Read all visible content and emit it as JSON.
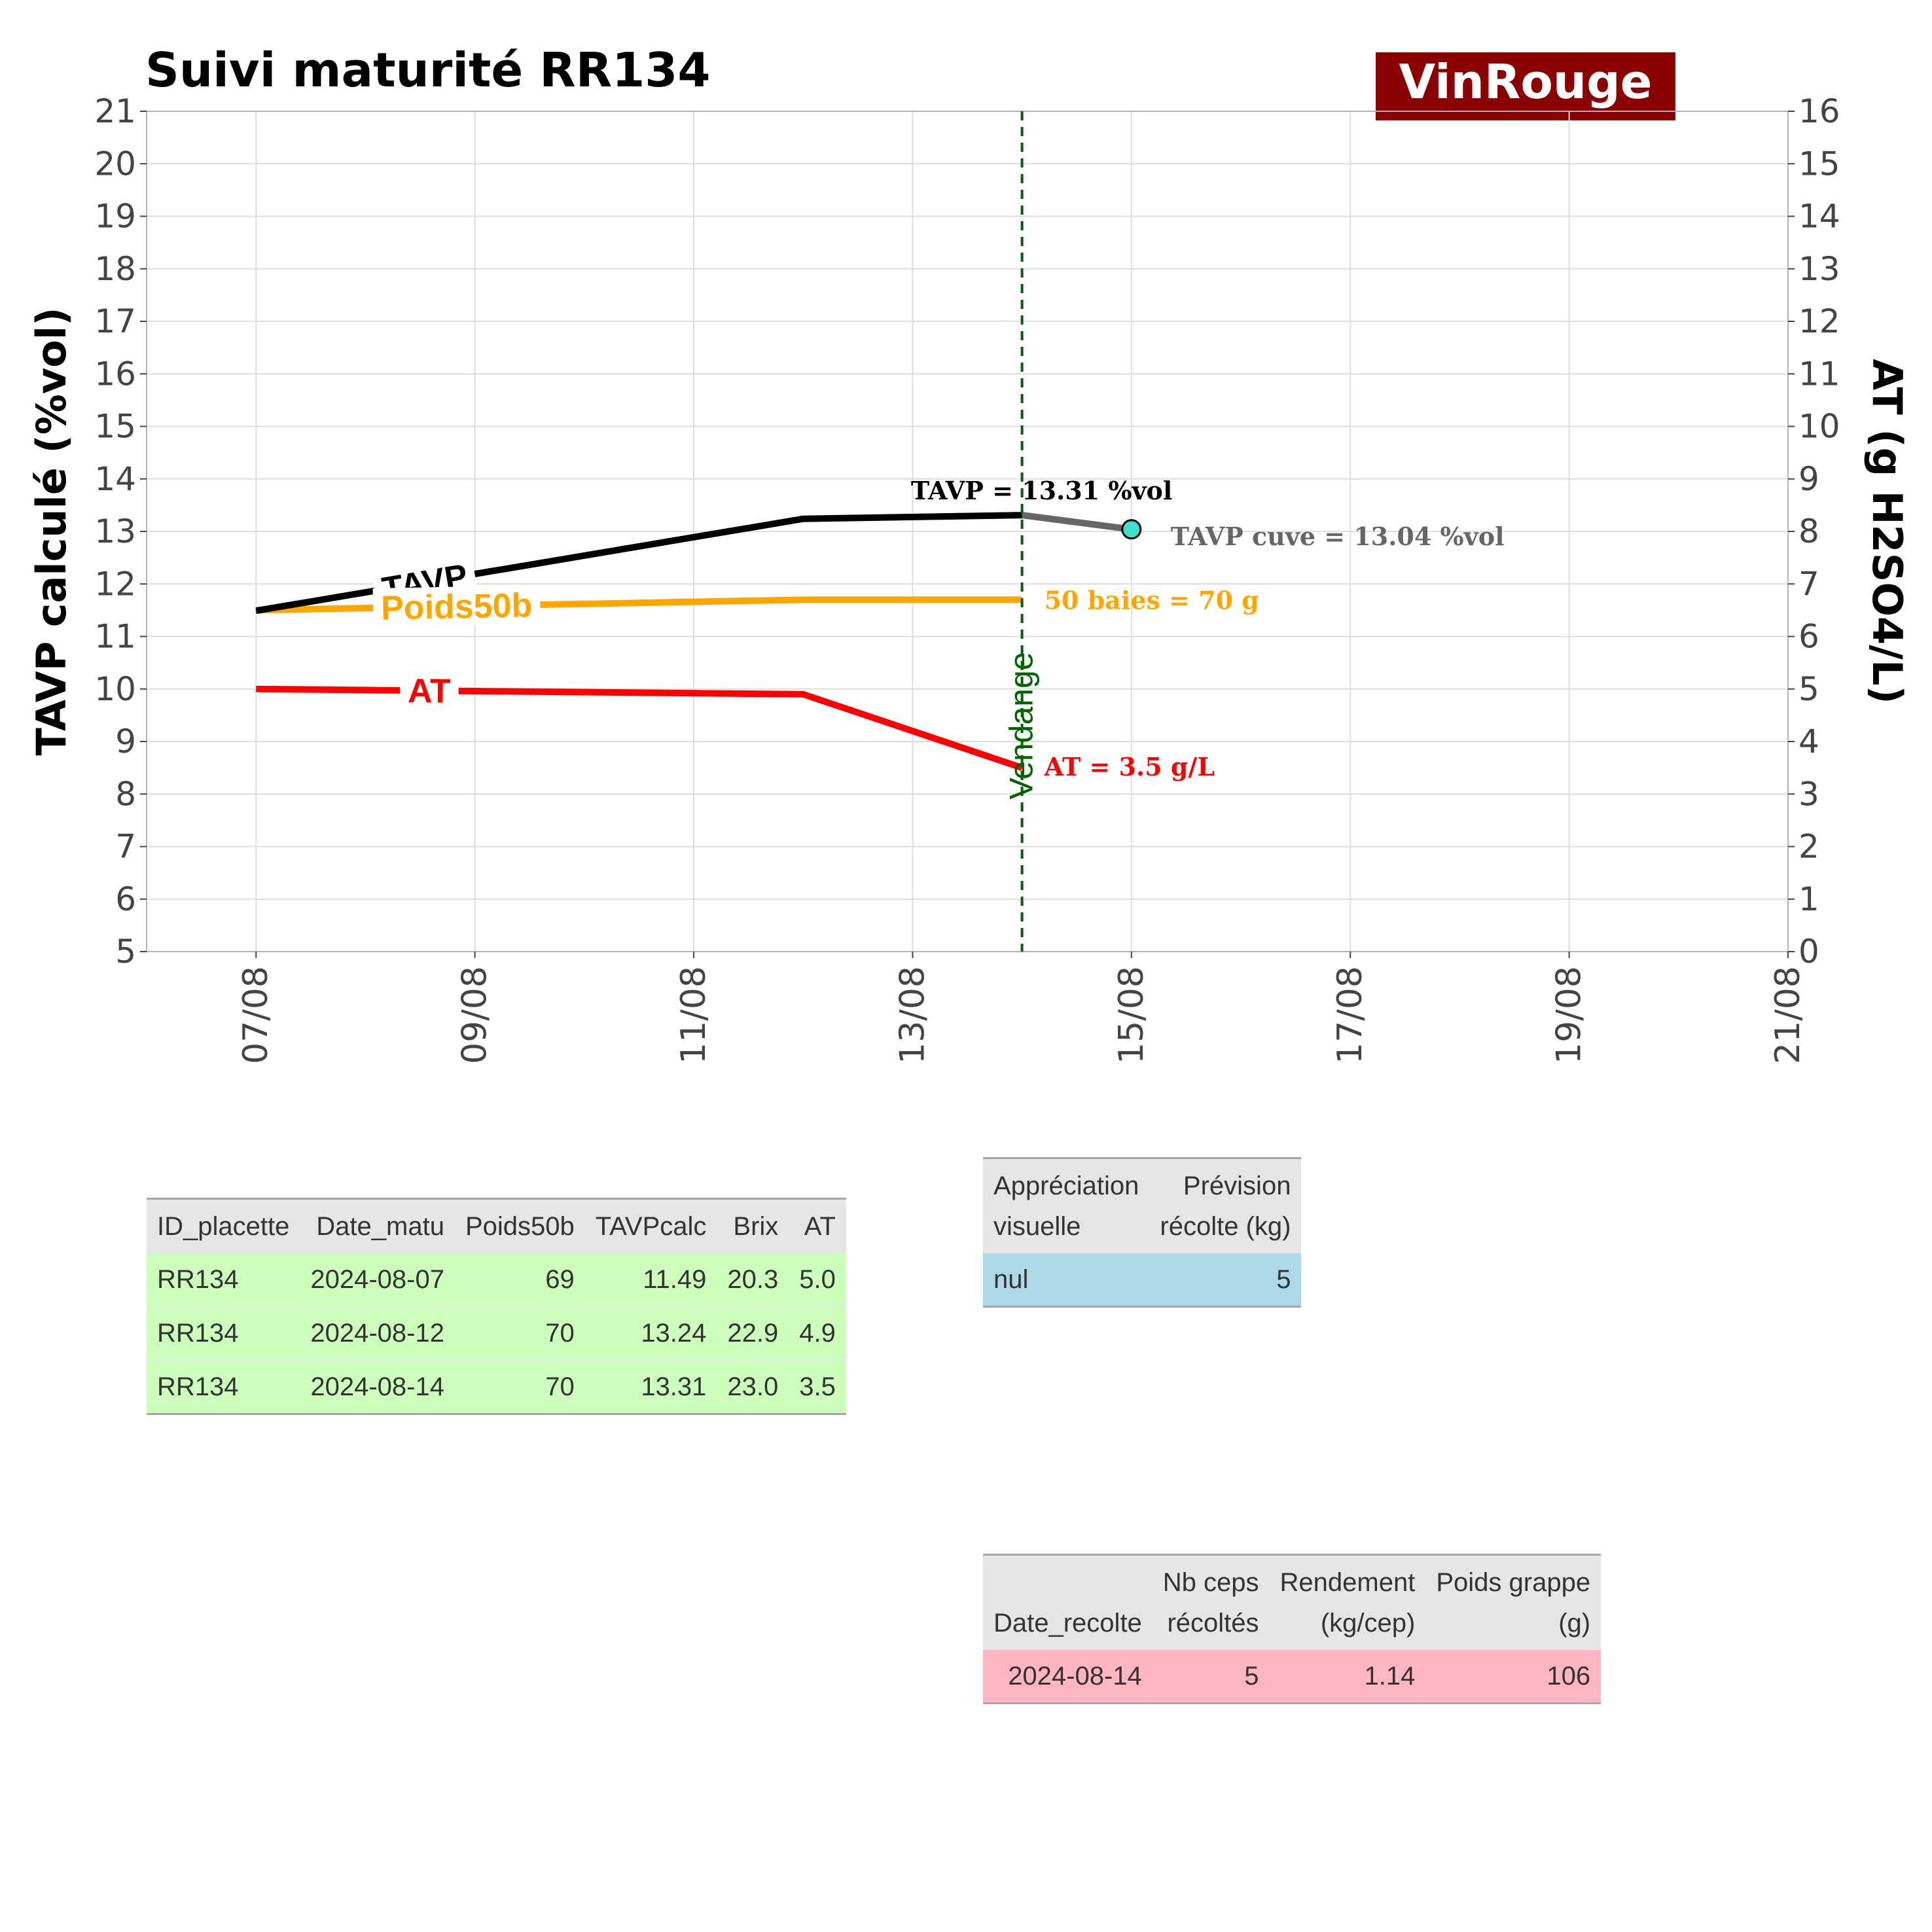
{
  "title": "Suivi maturité  RR134",
  "badge": {
    "text": "VinRouge",
    "bg": "#8b0000",
    "fg": "#ffffff"
  },
  "chart_data": {
    "type": "line",
    "x_dates": [
      "2024-08-07",
      "2024-08-12",
      "2024-08-14"
    ],
    "series": [
      {
        "name": "TAVP",
        "axis": "left",
        "color": "#000000",
        "values": [
          11.49,
          13.24,
          13.31
        ]
      },
      {
        "name": "Poids50b",
        "axis": "left",
        "color": "#ffa500",
        "values": [
          11.5,
          11.7,
          11.7
        ]
      },
      {
        "name": "AT",
        "axis": "right",
        "color": "#ff0000",
        "values": [
          5.0,
          4.9,
          3.5
        ]
      }
    ],
    "tavp_cuve": {
      "date": "2024-08-15",
      "value": 13.04,
      "color": "#666666",
      "marker": "#40e0d0"
    },
    "vendange": {
      "date": "2024-08-14",
      "label": "Vendange",
      "color": "#006400"
    },
    "annotations": {
      "tavp": "TAVP = 13.31 %vol",
      "cuve": "TAVP cuve = 13.04 %vol",
      "poids": "50 baies = 70 g",
      "at": "AT = 3.5 g/L"
    },
    "series_labels": {
      "tavp": "TAVP",
      "poids": "Poids50b",
      "at": "AT"
    },
    "ylabel_left": "TAVP calculé (%vol)",
    "ylabel_right": "AT (g H2SO4/L)",
    "ylim_left": [
      5,
      21
    ],
    "ylim_right": [
      0,
      16
    ],
    "xlim": [
      "2024-08-06",
      "2024-08-21"
    ],
    "x_ticks": [
      "2024-08-07",
      "2024-08-09",
      "2024-08-11",
      "2024-08-13",
      "2024-08-15",
      "2024-08-17",
      "2024-08-19",
      "2024-08-21"
    ],
    "x_tick_labels": [
      "07/08",
      "09/08",
      "11/08",
      "13/08",
      "15/08",
      "17/08",
      "19/08",
      "21/08"
    ],
    "y_ticks_left": [
      "5",
      "6",
      "7",
      "8",
      "9",
      "10",
      "11",
      "12",
      "13",
      "14",
      "15",
      "16",
      "17",
      "18",
      "19",
      "20",
      "21"
    ],
    "y_ticks_right": [
      "0",
      "1",
      "2",
      "3",
      "4",
      "5",
      "6",
      "7",
      "8",
      "9",
      "10",
      "11",
      "12",
      "13",
      "14",
      "15",
      "16"
    ]
  },
  "table_matu": {
    "headers": [
      "ID_placette",
      "Date_matu",
      "Poids50b",
      "TAVPcalc",
      "Brix",
      "AT"
    ],
    "rows": [
      [
        "RR134",
        "2024-08-07",
        "69",
        "11.49",
        "20.3",
        "5.0"
      ],
      [
        "RR134",
        "2024-08-12",
        "70",
        "13.24",
        "22.9",
        "4.9"
      ],
      [
        "RR134",
        "2024-08-14",
        "70",
        "13.31",
        "23.0",
        "3.5"
      ]
    ]
  },
  "table_prevision": {
    "headers": [
      [
        "Appréciation",
        "visuelle"
      ],
      [
        "Prévision",
        "récolte (kg)"
      ]
    ],
    "row": [
      "nul",
      "5"
    ]
  },
  "table_recolte": {
    "headers": [
      [
        "",
        "Date_recolte"
      ],
      [
        "Nb ceps",
        "récoltés"
      ],
      [
        "Rendement",
        "(kg/cep)"
      ],
      [
        "Poids grappe",
        "(g)"
      ]
    ],
    "row": [
      "2024-08-14",
      "5",
      "1.14",
      "106"
    ]
  }
}
